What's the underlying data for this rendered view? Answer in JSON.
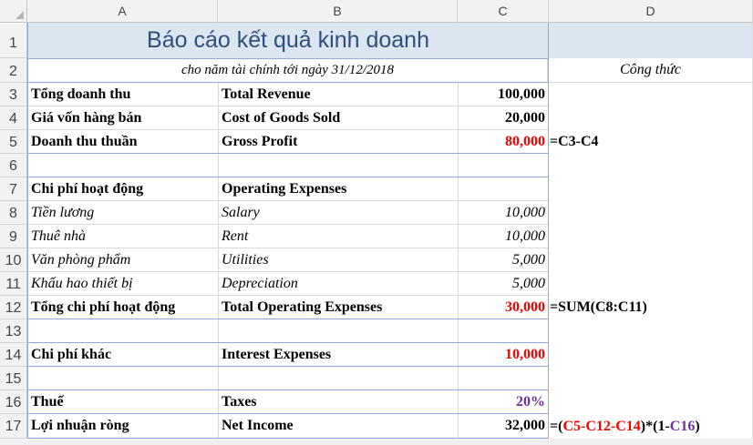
{
  "columns": [
    "A",
    "B",
    "C",
    "D"
  ],
  "rows": [
    "1",
    "2",
    "3",
    "4",
    "5",
    "6",
    "7",
    "8",
    "9",
    "10",
    "11",
    "12",
    "13",
    "14",
    "15",
    "16",
    "17"
  ],
  "title": "Báo cáo kết quả kinh doanh",
  "subtitle": "cho năm tài chính tới ngày 31/12/2018",
  "formula_header": "Công thức",
  "lines": {
    "r3": {
      "vi": "Tổng doanh thu",
      "en": "Total Revenue",
      "val": "100,000"
    },
    "r4": {
      "vi": "Giá vốn hàng bán",
      "en": "Cost of Goods Sold",
      "val": "20,000"
    },
    "r5": {
      "vi": "Doanh thu thuần",
      "en": "Gross Profit",
      "val": "80,000",
      "formula": "=C3-C4"
    },
    "r7": {
      "vi": "Chi phí hoạt động",
      "en": "Operating Expenses"
    },
    "r8": {
      "vi": "Tiền lương",
      "en": "Salary",
      "val": "10,000"
    },
    "r9": {
      "vi": "Thuê nhà",
      "en": "Rent",
      "val": "10,000"
    },
    "r10": {
      "vi": "Văn phòng phẩm",
      "en": "Utilities",
      "val": "5,000"
    },
    "r11": {
      "vi": "Khấu hao thiết bị",
      "en": "Depreciation",
      "val": "5,000"
    },
    "r12": {
      "vi": "Tổng chi phí hoạt động",
      "en": "Total Operating Expenses",
      "val": "30,000",
      "formula": "=SUM(C8:C11)"
    },
    "r14": {
      "vi": "Chi phí khác",
      "en": "Interest Expenses",
      "val": "10,000"
    },
    "r16": {
      "vi": "Thuế",
      "en": "Taxes",
      "val": "20%"
    },
    "r17": {
      "vi": "Lợi nhuận ròng",
      "en": "Net Income",
      "val": "32,000",
      "formula_parts": {
        "p1": "=(",
        "p2": "C5-C12-C14",
        "p3": ")*(1-",
        "p4": "C16",
        "p5": ")"
      }
    }
  },
  "colors": {
    "red": "#ff0000",
    "purple": "#7030a0",
    "title_fill": "#dce6f1",
    "title_text": "#2f4f7f"
  }
}
